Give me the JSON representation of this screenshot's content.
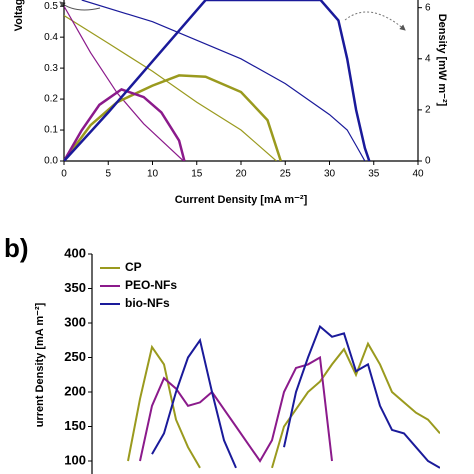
{
  "chart_data": [
    {
      "type": "line",
      "xlabel": "Current Density [mA m⁻²]",
      "ylabel": "Voltage [V]",
      "y2label": "Density [mW m⁻²]",
      "xlim": [
        0,
        40
      ],
      "xticks": [
        0,
        5,
        10,
        15,
        20,
        25,
        30,
        35,
        40
      ],
      "ylim": [
        0,
        0.52
      ],
      "yticks": [
        {
          "value": 0,
          "label": "0.0"
        },
        {
          "value": 0.1,
          "label": "0.1"
        },
        {
          "value": 0.2,
          "label": "0.2"
        },
        {
          "value": 0.3,
          "label": "0.3"
        },
        {
          "value": 0.4,
          "label": "0.4"
        },
        {
          "value": 0.5,
          "label": "0.5"
        }
      ],
      "y2lim": [
        0,
        6.3
      ],
      "y2ticks": [
        0,
        2,
        4,
        6
      ],
      "series": [
        {
          "color": "#9a9a1e",
          "x": [
            0,
            5,
            10,
            15,
            20,
            24
          ],
          "values": [
            0.47,
            0.38,
            0.29,
            0.19,
            0.1,
            0
          ]
        },
        {
          "color": "#8b1a8b",
          "x": [
            0,
            3,
            6,
            9,
            12,
            13.5
          ],
          "values": [
            0.5,
            0.35,
            0.22,
            0.12,
            0.04,
            0
          ]
        },
        {
          "color": "#1a1a9a",
          "x": [
            2,
            10,
            20,
            25,
            30,
            32,
            33,
            34
          ],
          "values": [
            0.52,
            0.45,
            0.33,
            0.25,
            0.15,
            0.1,
            0.05,
            0
          ]
        },
        {
          "color": "#9a9a1e",
          "axis": "y2",
          "x": [
            0,
            3,
            6,
            10,
            13,
            16,
            20,
            23,
            24.5
          ],
          "values": [
            0,
            1.4,
            2.3,
            2.95,
            3.35,
            3.3,
            2.7,
            1.6,
            0
          ]
        },
        {
          "color": "#8b1a8b",
          "axis": "y2",
          "x": [
            0,
            2,
            4,
            6.5,
            9,
            11,
            13,
            13.6
          ],
          "values": [
            0,
            1.2,
            2.2,
            2.8,
            2.5,
            1.9,
            0.8,
            0
          ]
        },
        {
          "color": "#1a1a9a",
          "axis": "y2",
          "x": [
            0,
            5,
            10,
            15,
            16,
            29,
            31,
            32,
            33,
            34,
            34.5
          ],
          "values": [
            0,
            1.9,
            3.9,
            5.9,
            6.3,
            6.3,
            5.5,
            4,
            2,
            0.5,
            0
          ]
        }
      ]
    },
    {
      "type": "line",
      "panel": "b)",
      "ylabel": "urrent Density [mA m⁻²]",
      "ylim": [
        80,
        400
      ],
      "yticks": [
        100,
        150,
        200,
        250,
        300,
        350,
        400
      ],
      "series": [
        {
          "name": "CP",
          "color": "#9a9a1e",
          "values": [
            null,
            null,
            null,
            100,
            190,
            265,
            240,
            160,
            120,
            90,
            null,
            null,
            null,
            null,
            null,
            90,
            150,
            175,
            200,
            215,
            240,
            262,
            225,
            270,
            240,
            200,
            185,
            170,
            160,
            140
          ]
        },
        {
          "name": "PEO-NFs",
          "color": "#8b1a8b",
          "values": [
            null,
            null,
            null,
            null,
            100,
            180,
            220,
            205,
            180,
            185,
            200,
            175,
            150,
            125,
            100,
            130,
            200,
            235,
            240,
            250,
            100,
            null,
            null,
            null,
            null,
            null,
            null,
            null,
            null,
            null
          ]
        },
        {
          "name": "bio-NFs",
          "color": "#1a1a9a",
          "values": [
            null,
            null,
            null,
            null,
            null,
            110,
            140,
            200,
            250,
            275,
            200,
            130,
            90,
            null,
            null,
            null,
            120,
            200,
            250,
            295,
            280,
            285,
            230,
            240,
            180,
            145,
            140,
            120,
            100,
            90
          ]
        }
      ]
    }
  ]
}
